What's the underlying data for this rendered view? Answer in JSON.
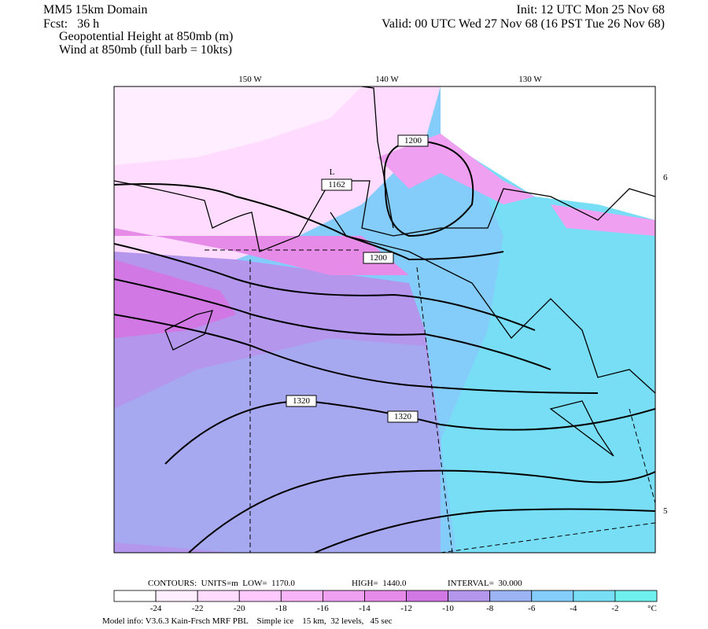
{
  "header": {
    "title": "MM5 15km Domain",
    "init": "Init: 12 UTC Mon 25 Nov 68",
    "forecast": "Fcst:   36 h",
    "valid": "Valid: 00 UTC Wed 27 Nov 68 (16 PST Tue 26 Nov 68)",
    "fields": [
      "Geopotential Height at 850mb (m)",
      "Wind at 850mb (full barb = 10kts)"
    ]
  },
  "map": {
    "longitude_labels": [
      "150 W",
      "140 W",
      "130 W"
    ],
    "latitude_labels": [
      "6",
      "5"
    ],
    "contour_labels": [
      "1200",
      "L",
      "1162",
      "1200",
      "1320",
      "1320"
    ]
  },
  "footer": {
    "contours": "CONTOURS:  UNITS=m  LOW=  1170.0",
    "high": "HIGH=  1440.0",
    "interval": "INTERVAL=  30.000"
  },
  "colorbar": {
    "ticks": [
      -24,
      -22,
      -20,
      -18,
      -16,
      -14,
      -12,
      -10,
      -8,
      -6,
      -4,
      -2
    ],
    "unit": "°C",
    "colors": [
      "#ffffff",
      "#ffeeff",
      "#ffdcff",
      "#ffc8ff",
      "#f8b4f8",
      "#f0a0f0",
      "#e68ce8",
      "#d278e4",
      "#b496ec",
      "#9cb4f4",
      "#84cdfa",
      "#78def6",
      "#6ef0ee"
    ]
  },
  "model_info": "Model info: V3.6.3 Kain-Frsch MRF PBL    Simple ice    15 km,  32 levels,   45 sec"
}
